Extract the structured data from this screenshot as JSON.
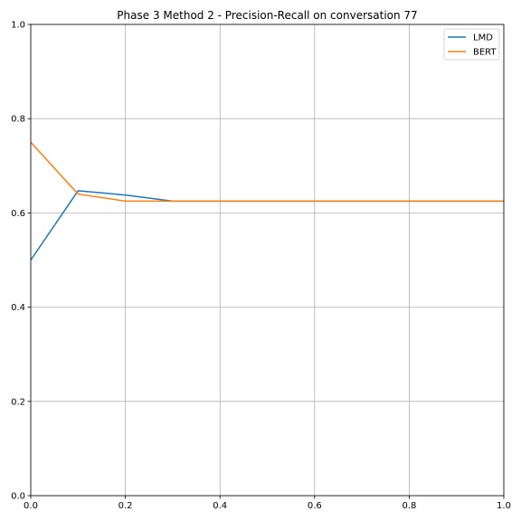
{
  "chart_data": {
    "type": "line",
    "title": "Phase 3 Method 2 - Precision-Recall on conversation 77",
    "xlabel": "",
    "ylabel": "",
    "xlim": [
      0,
      1
    ],
    "ylim": [
      0,
      1
    ],
    "x_ticks": [
      "0.0",
      "0.2",
      "0.4",
      "0.6",
      "0.8",
      "1.0"
    ],
    "y_ticks": [
      "0.0",
      "0.2",
      "0.4",
      "0.6",
      "0.8",
      "1.0"
    ],
    "grid": true,
    "legend_position": "top-right",
    "x": [
      0.0,
      0.1,
      0.2,
      0.3,
      0.4,
      0.5,
      0.6,
      0.7,
      0.8,
      0.9,
      1.0
    ],
    "series": [
      {
        "name": "LMD",
        "color": "#1f77b4",
        "values": [
          0.5,
          0.647,
          0.638,
          0.625,
          0.625,
          0.625,
          0.625,
          0.625,
          0.625,
          0.625,
          0.625
        ]
      },
      {
        "name": "BERT",
        "color": "#ff7f0e",
        "values": [
          0.75,
          0.64,
          0.625,
          0.625,
          0.625,
          0.625,
          0.625,
          0.625,
          0.625,
          0.625,
          0.625
        ]
      }
    ]
  }
}
